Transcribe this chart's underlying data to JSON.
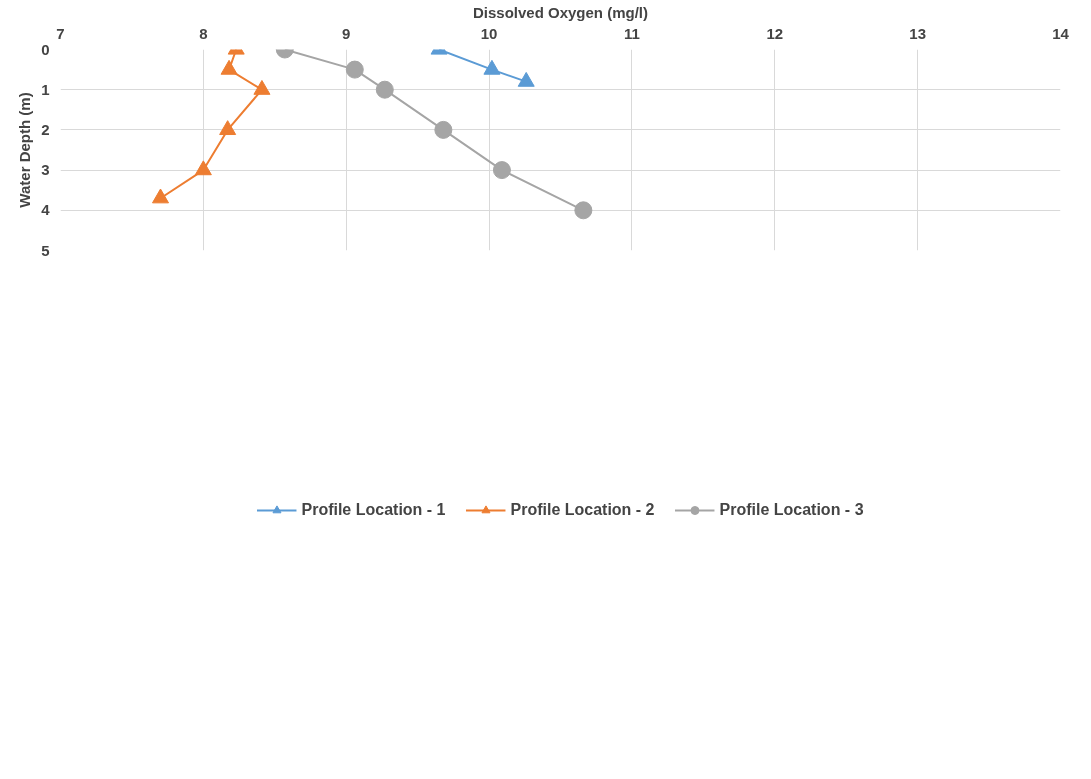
{
  "chart_data": {
    "type": "line",
    "xlabel": "Dissolved Oxygen (mg/l)",
    "ylabel": "Water Depth (m)",
    "xlim": [
      7,
      14
    ],
    "xticks": [
      7,
      8,
      9,
      10,
      11,
      12,
      13,
      14
    ],
    "ylim": [
      5,
      0
    ],
    "yticks": [
      0,
      1,
      2,
      3,
      4,
      5
    ],
    "grid": true,
    "legend": "bottom",
    "series": [
      {
        "name": "Profile Location - 1",
        "color": "#5b9bd5",
        "marker": "triangle",
        "x": [
          9.65,
          10.02,
          10.26
        ],
        "values": [
          0,
          0.5,
          0.8
        ]
      },
      {
        "name": "Profile Location - 2",
        "color": "#ed7d31",
        "marker": "triangle",
        "x": [
          8.23,
          8.18,
          8.41,
          8.17,
          8.0,
          7.7
        ],
        "values": [
          0,
          0.5,
          1,
          2,
          3,
          3.7
        ]
      },
      {
        "name": "Profile Location - 3",
        "color": "#a5a5a5",
        "marker": "circle",
        "x": [
          8.57,
          9.06,
          9.27,
          9.68,
          10.09,
          10.66
        ],
        "values": [
          0,
          0.5,
          1,
          2,
          3,
          4
        ]
      }
    ]
  }
}
